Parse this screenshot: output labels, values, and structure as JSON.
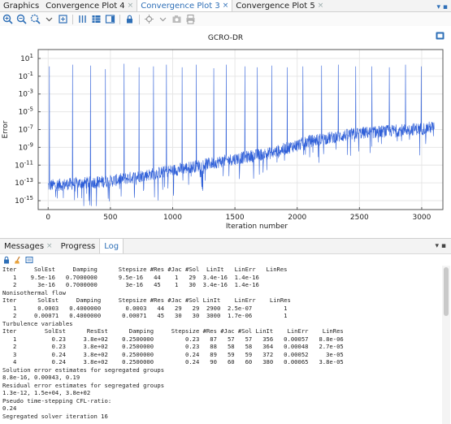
{
  "tabs": [
    {
      "label": "Graphics",
      "active": false,
      "closable": false
    },
    {
      "label": "Convergence Plot 4",
      "active": false,
      "closable": true
    },
    {
      "label": "Convergence Plot 3",
      "active": true,
      "closable": true
    },
    {
      "label": "Convergence Plot 5",
      "active": false,
      "closable": true
    }
  ],
  "tab_close_glyph": "×",
  "tabbar_menu_glyph": "▾ ▪",
  "toolbar_icons": [
    "zoom-in-icon",
    "zoom-out-icon",
    "zoom-box-icon",
    "zoom-extents-icon",
    "grid-icon",
    "table-icon",
    "legend-icon",
    "lock-icon",
    "scene-light-icon",
    "image-snapshot-icon",
    "print-icon"
  ],
  "plot": {
    "title": "GCRO-DR",
    "ylabel": "Error",
    "xlabel": "Iteration number"
  },
  "chart_data": {
    "type": "line",
    "title": "GCRO-DR",
    "xlabel": "Iteration number",
    "ylabel": "Error",
    "yscale": "log",
    "xlim": [
      -80,
      3170
    ],
    "ylim_exp": [
      -16,
      2
    ],
    "xticks": [
      0,
      500,
      1000,
      1500,
      2000,
      2500,
      3000
    ],
    "yticks_exp": [
      1,
      -1,
      -3,
      -5,
      -7,
      -9,
      -11,
      -13,
      -15
    ],
    "color": "#2f5fd8",
    "trend": [
      [
        0,
        -13.3
      ],
      [
        500,
        -12.8
      ],
      [
        1000,
        -11.6
      ],
      [
        1500,
        -10.3
      ],
      [
        1800,
        -9.6
      ],
      [
        2100,
        -8.3
      ],
      [
        2500,
        -7.4
      ],
      [
        3000,
        -6.9
      ],
      [
        3100,
        -6.7
      ]
    ],
    "spikes": [
      [
        10,
        0.1
      ],
      [
        195,
        0.3
      ],
      [
        340,
        0.2
      ],
      [
        460,
        -0.2
      ],
      [
        610,
        0.4
      ],
      [
        730,
        0.0
      ],
      [
        845,
        0.1
      ],
      [
        950,
        0.3
      ],
      [
        1075,
        0.0
      ],
      [
        1190,
        0.3
      ],
      [
        1330,
        -0.1
      ],
      [
        1430,
        0.3
      ],
      [
        1580,
        0.1
      ],
      [
        1680,
        0.0
      ],
      [
        1795,
        0.2
      ],
      [
        1920,
        0.0
      ],
      [
        2045,
        0.1
      ],
      [
        2195,
        0.2
      ],
      [
        2330,
        0.3
      ],
      [
        2470,
        0.1
      ],
      [
        2600,
        0.1
      ],
      [
        2740,
        0.0
      ],
      [
        2870,
        0.3
      ],
      [
        2995,
        0.1
      ]
    ]
  },
  "messages_panel": {
    "tabs": [
      {
        "label": "Messages",
        "active": false,
        "closable": true
      },
      {
        "label": "Progress",
        "active": false,
        "closable": false
      },
      {
        "label": "Log",
        "active": true,
        "closable": false
      }
    ],
    "menu_glyph": "▾ ▪",
    "tool_icons": [
      "lock-icon",
      "broom-icon",
      "scroll-lock-icon"
    ]
  },
  "log_lines": [
    "Iter     SolEst     Damping      Stepsize #Res #Jac #Sol  LinIt   LinErr   LinRes",
    "   1    9.5e-16   0.7000000      9.5e-16   44    1   29  3.4e-16  1.4e-16",
    "   2      3e-16   0.7000000        3e-16   45    1   30  3.4e-16  1.4e-16",
    "Nonisothermal flow",
    "Iter      SolEst     Damping     Stepsize #Res #Jac #Sol LinIt    LinErr    LinRes",
    "   1      0.0003   0.4000000       0.0003   44   29   29  2900  2.5e-07         1",
    "   2     0.00071   0.4000000      0.00071   45   30   30  3000  1.7e-06         1",
    "Turbulence variables",
    "Iter        SolEst      ResEst      Damping     Stepsize #Res #Jac #Sol LinIt    LinErr    LinRes",
    "   1          0.23     3.8e+02    0.2500000         0.23   87   57   57   356   0.00057   8.8e-06",
    "   2          0.23     3.8e+02    0.2500000         0.23   88   58   58   364   0.00048   2.7e-05",
    "   3          0.24     3.8e+02    0.2500000         0.24   89   59   59   372   0.00052     3e-05",
    "   4          0.24     3.8e+02    0.2500000         0.24   90   60   60   380   0.00065   3.8e-05",
    "Solution error estimates for segregated groups",
    "8.8e-16, 0.00043, 0.19",
    "Residual error estimates for segregated groups",
    "1.3e-12, 1.5e+04, 3.8e+02",
    "Pseudo time-stepping CFL-ratio:",
    "0.24",
    "Segregated solver iteration 16"
  ]
}
